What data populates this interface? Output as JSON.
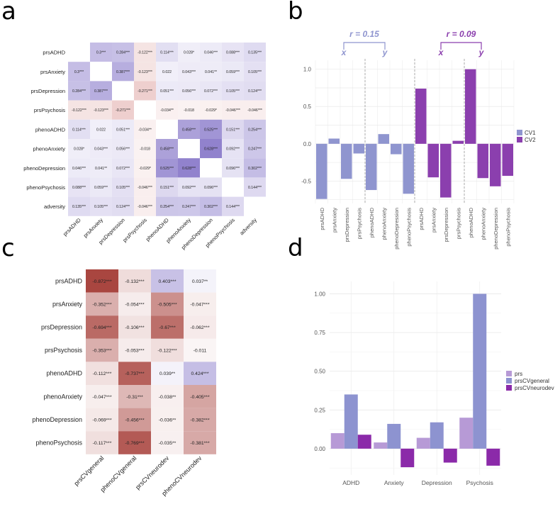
{
  "panels": {
    "a": "a",
    "b": "b",
    "c": "c",
    "d": "d"
  },
  "colors": {
    "purple_light": "#b7a8d6",
    "cv1": "#8f95cf",
    "cv2": "#8b3fae",
    "prs_d": "#b79ad6",
    "general_d": "#8d93d0",
    "neurodev_d": "#8b2aa9",
    "heat_pos": "#7c6bc4",
    "heat_neg": "#a43a34"
  },
  "chart_data": [
    {
      "panel": "a",
      "type": "heatmap",
      "rows": [
        "prsADHD",
        "prsAnxiety",
        "prsDepression",
        "prsPsychosis",
        "phenoADHD",
        "phenoAnxiety",
        "phenoDepression",
        "phenoPsychosis",
        "adversity"
      ],
      "cols": [
        "prsADHD",
        "prsAnxiety",
        "prsDepression",
        "prsPsychosis",
        "phenoADHD",
        "phenoAnxiety",
        "phenoDepression",
        "phenoPsychosis",
        "adversity"
      ],
      "values": [
        [
          null,
          0.3,
          0.284,
          -0.122,
          0.114,
          0.028,
          0.046,
          0.088,
          0.135
        ],
        [
          0.3,
          null,
          0.387,
          -0.123,
          0.022,
          0.043,
          0.041,
          0.059,
          0.105
        ],
        [
          0.284,
          0.387,
          null,
          -0.271,
          0.051,
          0.056,
          0.072,
          0.105,
          0.124
        ],
        [
          -0.122,
          -0.123,
          -0.271,
          null,
          -0.034,
          -0.018,
          -0.029,
          -0.046,
          -0.046
        ],
        [
          0.114,
          0.022,
          0.051,
          -0.034,
          null,
          0.458,
          0.525,
          0.151,
          0.254
        ],
        [
          0.028,
          0.043,
          0.056,
          -0.018,
          0.458,
          null,
          0.628,
          0.092,
          0.247
        ],
        [
          0.046,
          0.041,
          0.072,
          -0.029,
          0.525,
          0.628,
          null,
          0.096,
          0.302
        ],
        [
          0.088,
          0.059,
          0.105,
          -0.046,
          0.151,
          0.092,
          0.096,
          null,
          0.144
        ],
        [
          0.135,
          0.105,
          0.124,
          -0.046,
          0.254,
          0.247,
          0.302,
          0.144,
          null
        ]
      ],
      "labels": [
        [
          "",
          "0.3***",
          "0.284***",
          "-0.122***",
          "0.114***",
          "0.028*",
          "0.046***",
          "0.088***",
          "0.135***"
        ],
        [
          "0.3***",
          "",
          "0.387***",
          "-0.123***",
          "0.022",
          "0.043***",
          "0.041**",
          "0.059***",
          "0.105***"
        ],
        [
          "0.284***",
          "0.387***",
          "",
          "-0.271***",
          "0.051***",
          "0.056***",
          "0.072***",
          "0.105***",
          "0.124***"
        ],
        [
          "-0.122***",
          "-0.123***",
          "-0.271***",
          "",
          "-0.034**",
          "-0.018",
          "-0.029*",
          "-0.046***",
          "-0.046***"
        ],
        [
          "0.114***",
          "0.022",
          "0.051***",
          "-0.034**",
          "",
          "0.458***",
          "0.525***",
          "0.151***",
          "0.254***"
        ],
        [
          "0.028*",
          "0.043***",
          "0.056***",
          "-0.018",
          "0.458***",
          "",
          "0.628***",
          "0.092***",
          "0.247***"
        ],
        [
          "0.046***",
          "0.041**",
          "0.072***",
          "-0.029*",
          "0.525***",
          "0.628***",
          "",
          "0.096***",
          "0.302***"
        ],
        [
          "0.088***",
          "0.059***",
          "0.105***",
          "-0.046***",
          "0.151***",
          "0.092***",
          "0.096***",
          "",
          "0.144***"
        ],
        [
          "0.135***",
          "0.105***",
          "0.124***",
          "-0.046***",
          "0.254***",
          "0.247***",
          "0.302***",
          "0.144***",
          ""
        ]
      ]
    },
    {
      "panel": "b",
      "type": "bar",
      "categories": [
        "prsADHD",
        "prsAnxiety",
        "prsDepression",
        "prsPsychosis",
        "phenoADHD",
        "phenoAnxiety",
        "phenoDepression",
        "phenoPsychosis",
        "prsADHD",
        "prsAnxiety",
        "prsDepression",
        "prsPsychosis",
        "phenoADHD",
        "phenoAnxiety",
        "phenoDepression",
        "phenoPsychosis"
      ],
      "series": [
        {
          "name": "CV1",
          "values": [
            -0.74,
            0.07,
            -0.47,
            -0.13,
            -0.62,
            0.13,
            -0.14,
            -0.67,
            null,
            null,
            null,
            null,
            null,
            null,
            null,
            null
          ]
        },
        {
          "name": "CV2",
          "values": [
            null,
            null,
            null,
            null,
            null,
            null,
            null,
            null,
            0.74,
            -0.45,
            -0.72,
            0.04,
            1.0,
            -0.46,
            -0.57,
            -0.43
          ]
        }
      ],
      "ylim": [
        -0.8,
        1.12
      ],
      "yticks": [
        "-0.5",
        "0.0",
        "0.5",
        "1.0"
      ],
      "legend": "right",
      "annotations": [
        {
          "r": "r = 0.15",
          "x": "x",
          "y": "y"
        },
        {
          "r": "r = 0.09",
          "x": "x",
          "y": "y"
        }
      ]
    },
    {
      "panel": "c",
      "type": "heatmap",
      "rows": [
        "prsADHD",
        "prsAnxiety",
        "prsDepression",
        "prsPsychosis",
        "phenoADHD",
        "phenoAnxiety",
        "phenoDepression",
        "phenoPsychosis"
      ],
      "cols": [
        "prsCVgeneral",
        "phenoCVgeneral",
        "prsCVneurodev",
        "phenoCVneurodev"
      ],
      "values": [
        [
          -0.872,
          -0.132,
          0.403,
          0.037
        ],
        [
          -0.352,
          -0.054,
          -0.505,
          -0.047
        ],
        [
          -0.694,
          -0.106,
          -0.67,
          -0.062
        ],
        [
          -0.353,
          -0.053,
          -0.122,
          -0.011
        ],
        [
          -0.112,
          -0.737,
          0.039,
          0.424
        ],
        [
          -0.047,
          -0.31,
          -0.038,
          -0.405
        ],
        [
          -0.069,
          -0.456,
          -0.036,
          -0.382
        ],
        [
          -0.117,
          -0.769,
          -0.035,
          -0.381
        ]
      ],
      "labels": [
        [
          "-0.872***",
          "-0.132***",
          "0.403***",
          "0.037**"
        ],
        [
          "-0.352***",
          "-0.054***",
          "-0.505***",
          "-0.047***"
        ],
        [
          "-0.694***",
          "-0.106***",
          "-0.67***",
          "-0.062***"
        ],
        [
          "-0.353***",
          "-0.053***",
          "-0.122***",
          "-0.011"
        ],
        [
          "-0.112***",
          "-0.737***",
          "0.039**",
          "0.424***"
        ],
        [
          "-0.047***",
          "-0.31***",
          "-0.038**",
          "-0.405***"
        ],
        [
          "-0.069***",
          "-0.456***",
          "-0.036**",
          "-0.382***"
        ],
        [
          "-0.117***",
          "-0.769***",
          "-0.035**",
          "-0.381***"
        ]
      ]
    },
    {
      "panel": "d",
      "type": "bar",
      "categories": [
        "ADHD",
        "Anxiety",
        "Depression",
        "Psychosis"
      ],
      "series": [
        {
          "name": "prs",
          "values": [
            0.1,
            0.04,
            0.07,
            0.2
          ]
        },
        {
          "name": "prsCVgeneral",
          "values": [
            0.35,
            0.16,
            0.17,
            1.0
          ]
        },
        {
          "name": "prsCVneurodev",
          "values": [
            0.09,
            -0.12,
            -0.09,
            -0.11
          ]
        }
      ],
      "ylim": [
        -0.17,
        1.08
      ],
      "yticks": [
        "0.00",
        "0.25",
        "0.50",
        "0.75",
        "1.00"
      ],
      "legend": "right"
    }
  ]
}
